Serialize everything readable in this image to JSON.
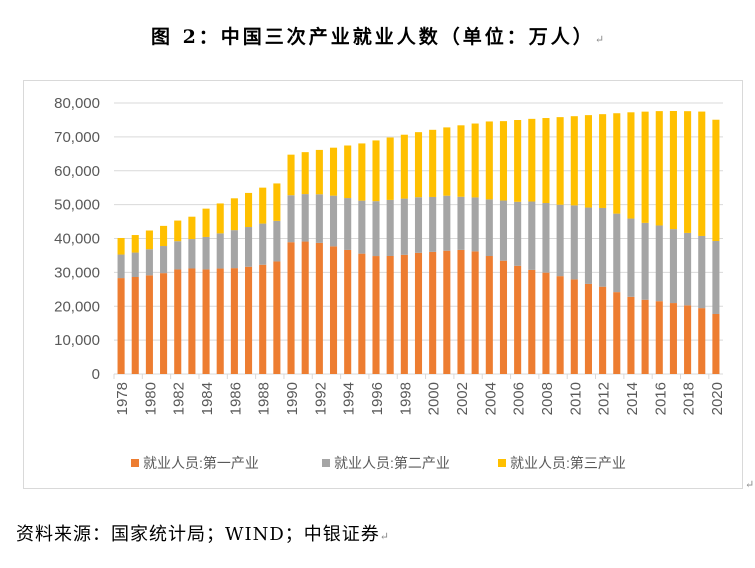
{
  "title": "图 2：中国三次产业就业人数（单位：万人）",
  "paragraph_mark": "↵",
  "source": "资料来源：国家统计局；WIND；中银证券",
  "chart_data": {
    "type": "bar",
    "stacked": true,
    "title": "",
    "xlabel": "",
    "ylabel": "",
    "ylim": [
      0,
      80000
    ],
    "yticks": [
      0,
      10000,
      20000,
      30000,
      40000,
      50000,
      60000,
      70000,
      80000
    ],
    "ytick_labels": [
      "0",
      "10,000",
      "20,000",
      "30,000",
      "40,000",
      "50,000",
      "60,000",
      "70,000",
      "80,000"
    ],
    "grid": true,
    "legend_position": "bottom",
    "categories": [
      "1978",
      "1979",
      "1980",
      "1981",
      "1982",
      "1983",
      "1984",
      "1985",
      "1986",
      "1987",
      "1988",
      "1989",
      "1990",
      "1991",
      "1992",
      "1993",
      "1994",
      "1995",
      "1996",
      "1997",
      "1998",
      "1999",
      "2000",
      "2001",
      "2002",
      "2003",
      "2004",
      "2005",
      "2006",
      "2007",
      "2008",
      "2009",
      "2010",
      "2011",
      "2012",
      "2013",
      "2014",
      "2015",
      "2016",
      "2017",
      "2018",
      "2019",
      "2020"
    ],
    "xtick_labels_shown": [
      "1978",
      "1980",
      "1982",
      "1984",
      "1986",
      "1988",
      "1990",
      "1992",
      "1994",
      "1996",
      "1998",
      "2000",
      "2002",
      "2004",
      "2006",
      "2008",
      "2010",
      "2012",
      "2014",
      "2016",
      "2018",
      "2020"
    ],
    "series": [
      {
        "name": "就业人员:第一产业",
        "color": "#ed7d31",
        "values": [
          28318,
          28634,
          29122,
          29777,
          30859,
          31151,
          30868,
          31130,
          31254,
          31663,
          32249,
          33225,
          38914,
          39098,
          38699,
          37680,
          36628,
          35530,
          34820,
          34840,
          35177,
          35768,
          36043,
          36399,
          36640,
          36204,
          34830,
          33442,
          31941,
          30731,
          29923,
          28890,
          27931,
          26594,
          25773,
          24171,
          22790,
          21919,
          21496,
          20944,
          20258,
          19445,
          17715
        ]
      },
      {
        "name": "就业人员:第二产业",
        "color": "#a5a5a5",
        "values": [
          6945,
          7214,
          7707,
          8003,
          8346,
          8679,
          9590,
          10384,
          11216,
          11726,
          12152,
          11976,
          13856,
          14015,
          14355,
          14965,
          15312,
          15655,
          16203,
          16547,
          16600,
          16421,
          16219,
          16234,
          15682,
          15927,
          16709,
          17766,
          18894,
          20186,
          20553,
          21080,
          21842,
          22544,
          23241,
          23170,
          23099,
          22693,
          22350,
          21824,
          21390,
          21305,
          21543
        ]
      },
      {
        "name": "就业人员:第三产业",
        "color": "#ffc000",
        "values": [
          4890,
          5177,
          5532,
          5945,
          6090,
          6606,
          8359,
          8836,
          9395,
          10066,
          10612,
          11055,
          11979,
          12378,
          13098,
          14163,
          15515,
          16880,
          17927,
          18432,
          18860,
          19205,
          19823,
          20165,
          21090,
          21809,
          23011,
          23439,
          24143,
          24404,
          25087,
          25857,
          26332,
          27282,
          27690,
          29636,
          31364,
          32839,
          33757,
          34872,
          35938,
          36721,
          35806
        ]
      }
    ]
  }
}
